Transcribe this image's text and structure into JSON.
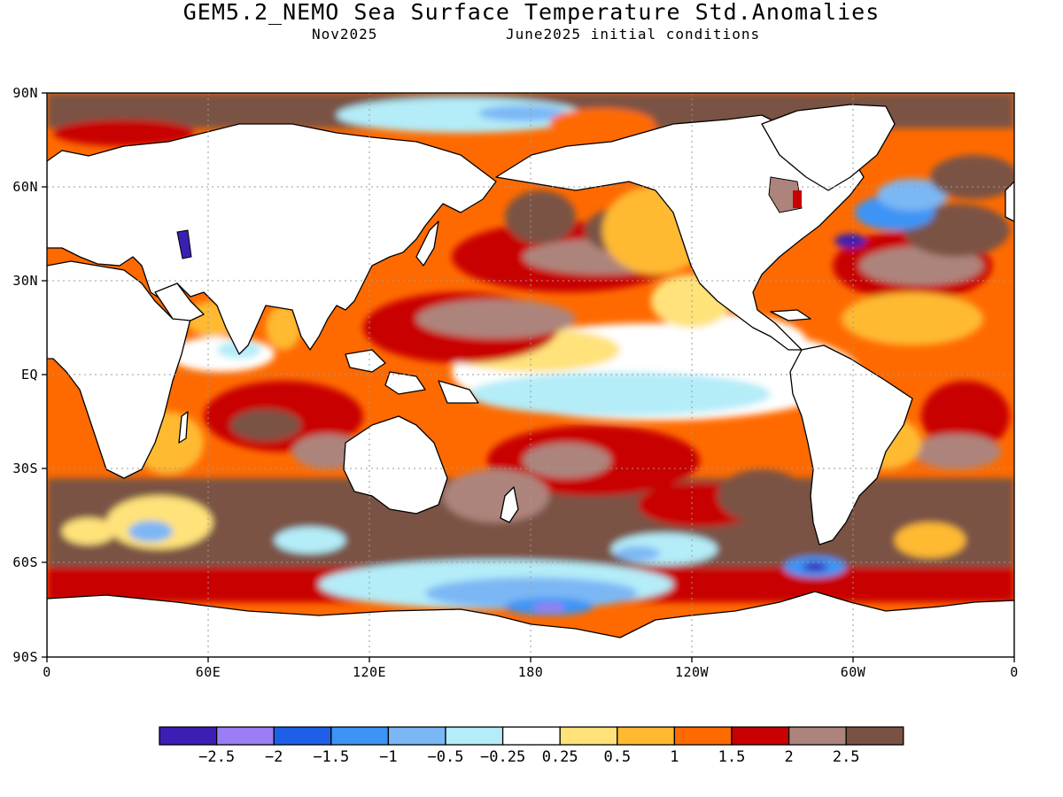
{
  "title": "GEM5.2_NEMO Sea Surface Temperature Std.Anomalies",
  "subtitle_left": "Nov2025",
  "subtitle_right": "June2025 initial conditions",
  "y_axis_labels": [
    "90N",
    "60N",
    "30N",
    "EQ",
    "30S",
    "60S",
    "90S"
  ],
  "x_axis_labels": [
    "0",
    "60E",
    "120E",
    "180",
    "120W",
    "60W",
    "0"
  ],
  "colorbar": {
    "colors": [
      "#3b1fb4",
      "#9b7df5",
      "#1e5fe8",
      "#3e94f5",
      "#7bb7f5",
      "#b4ecf8",
      "#ffffff",
      "#ffe27a",
      "#ffba30",
      "#ff6a00",
      "#c80000",
      "#ad847c",
      "#7a5244"
    ],
    "labels": [
      "-2.5",
      "-2",
      "-1.5",
      "-1",
      "-0.5",
      "-0.25",
      "0.25",
      "0.5",
      "1",
      "1.5",
      "2",
      "2.5"
    ]
  },
  "map_colors": {
    "land": "#ffffff",
    "coast": "#000000",
    "grid": "#9a9a9a"
  }
}
